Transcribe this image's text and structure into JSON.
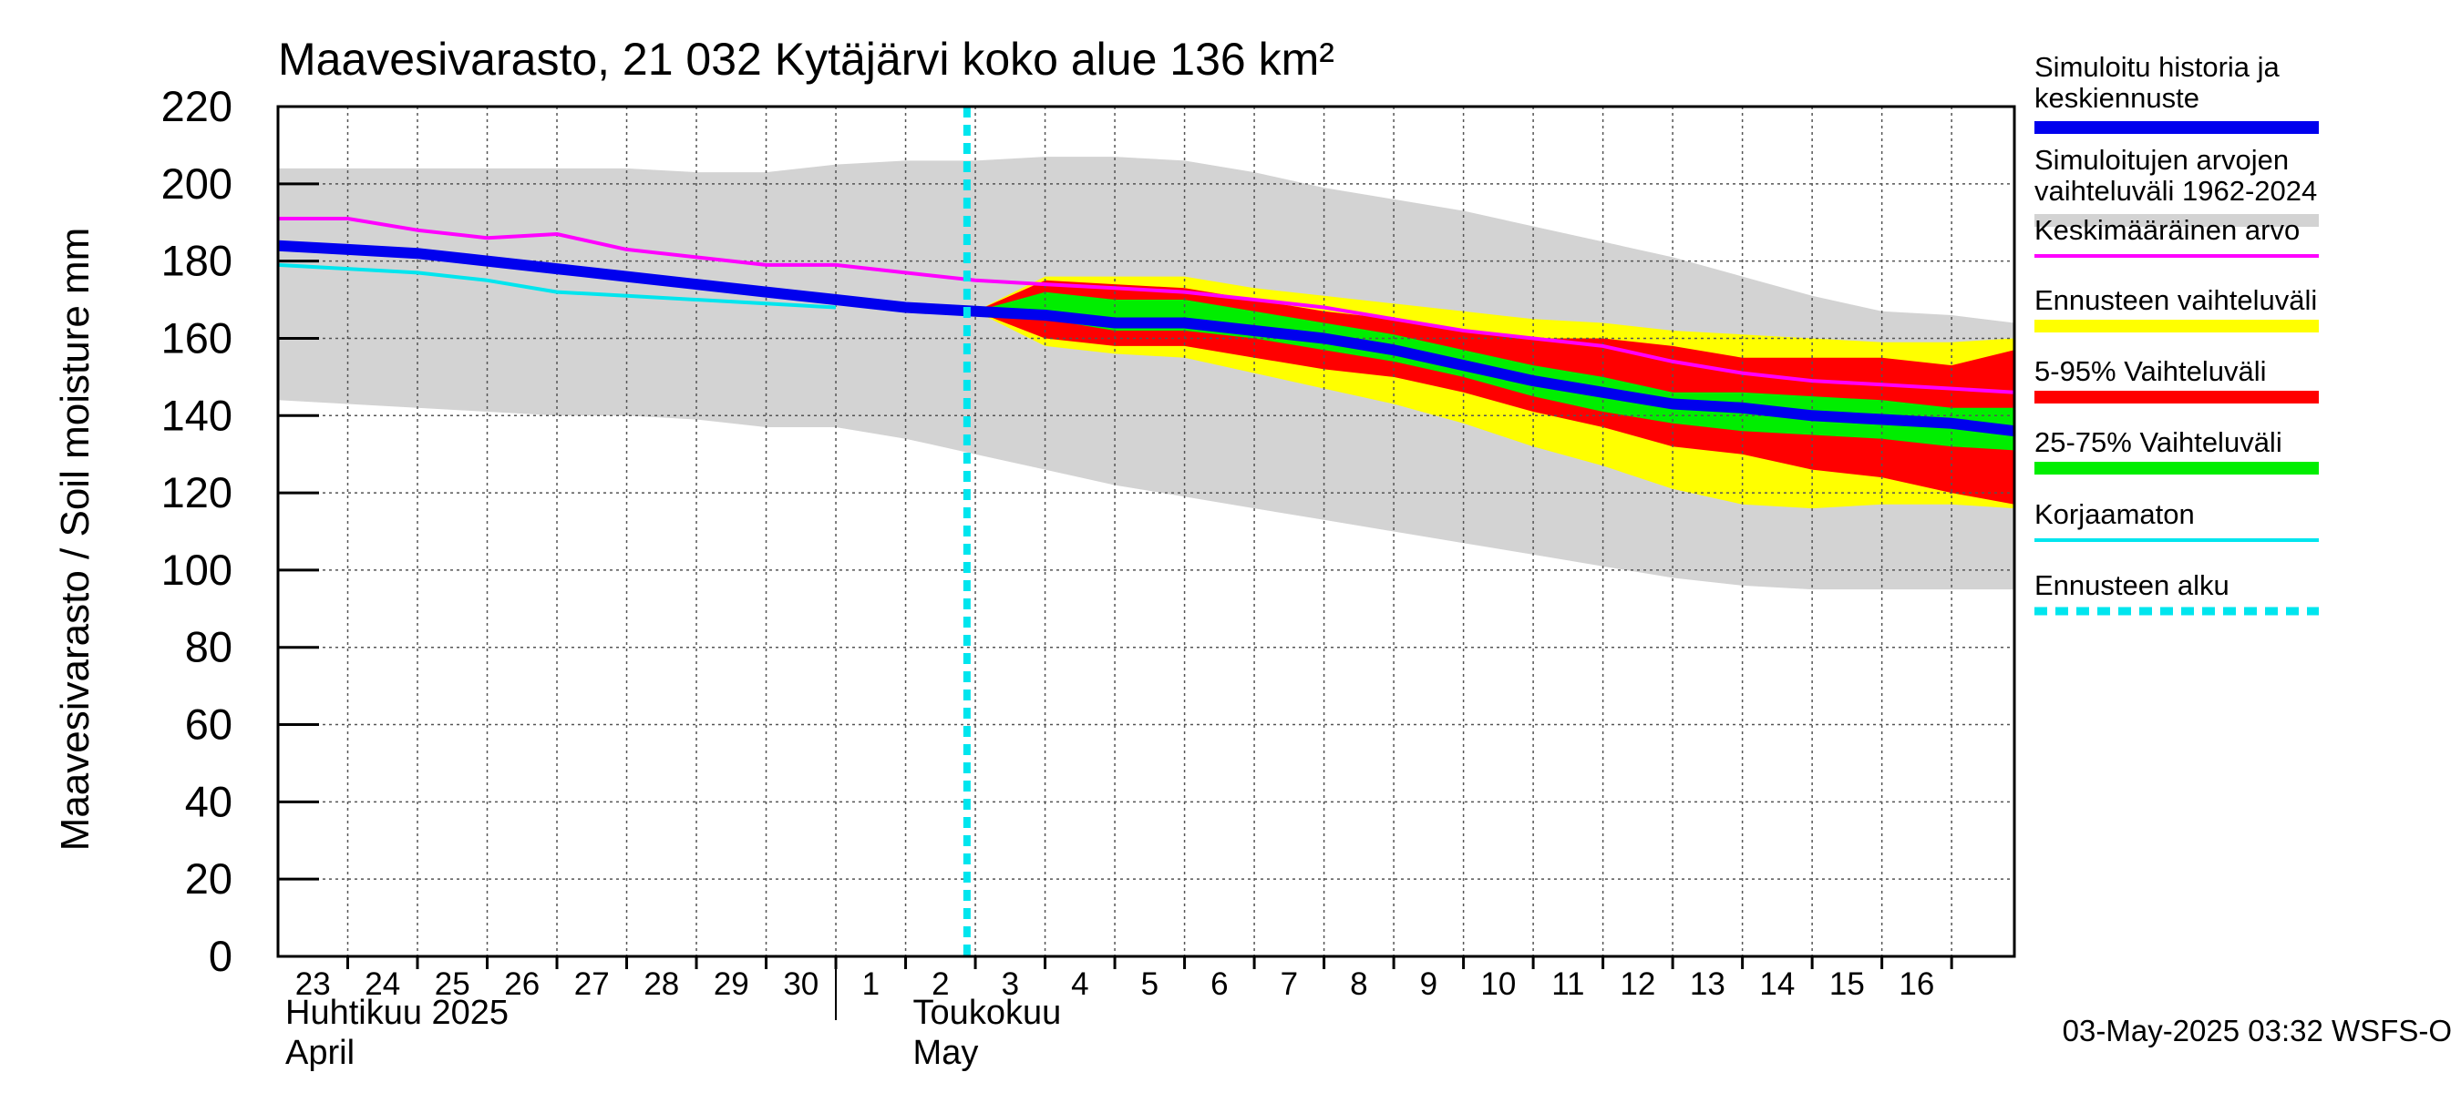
{
  "chart_data": {
    "type": "area",
    "title": "Maavesivarasto, 21 032 Kytäjärvi koko alue 136 km²",
    "ylabel": "Maavesivarasto / Soil moisture   mm",
    "ylim": [
      0,
      220
    ],
    "yticks": [
      0,
      20,
      40,
      60,
      80,
      100,
      120,
      140,
      160,
      180,
      200,
      220
    ],
    "x_start_day": 23,
    "x_days": 24.9,
    "day_labels": [
      "23",
      "24",
      "25",
      "26",
      "27",
      "28",
      "29",
      "30",
      "1",
      "2",
      "3",
      "4",
      "5",
      "6",
      "7",
      "8",
      "9",
      "10",
      "11",
      "12",
      "13",
      "14",
      "15",
      "16"
    ],
    "month_labels": [
      {
        "line1": "Huhtikuu  2025",
        "line2": "April",
        "day_index": 0
      },
      {
        "line1": "Toukokuu",
        "line2": "May",
        "day_index": 9
      }
    ],
    "month_separator_day_index": 8,
    "forecast_start_day_index": 10,
    "footer": "03-May-2025 03:32 WSFS-O",
    "colors": {
      "hist_range": "#d3d3d3",
      "forecast_range": "#ffff00",
      "p5_95": "#ff0000",
      "p25_75": "#00ee00",
      "mean": "#ff00ff",
      "uncorrected": "#00e5ee",
      "simulated": "#0000ee",
      "forecast_start": "#00e5ee",
      "grid": "#555555"
    },
    "series": {
      "hist_range": {
        "x": [
          0,
          1,
          2,
          3,
          4,
          5,
          6,
          7,
          8,
          9,
          10,
          11,
          12,
          13,
          14,
          15,
          16,
          17,
          18,
          19,
          20,
          21,
          22,
          23,
          24,
          24.9
        ],
        "upper": [
          204,
          204,
          204,
          204,
          204,
          204,
          203,
          203,
          205,
          206,
          206,
          207,
          207,
          206,
          203,
          199,
          196,
          193,
          189,
          185,
          181,
          176,
          171,
          167,
          166,
          164
        ],
        "lower": [
          144,
          143,
          142,
          141,
          140,
          140,
          139,
          137,
          137,
          134,
          130,
          126,
          122,
          119,
          116,
          113,
          110,
          107,
          104,
          101,
          98,
          96,
          95,
          95,
          95,
          95
        ]
      },
      "forecast_range": {
        "x": [
          10,
          11,
          12,
          13,
          14,
          15,
          16,
          17,
          18,
          19,
          20,
          21,
          22,
          23,
          24,
          24.9
        ],
        "upper": [
          167,
          176,
          176,
          176,
          173,
          171,
          169,
          167,
          165,
          164,
          162,
          161,
          160,
          159,
          159,
          160
        ],
        "lower": [
          167,
          158,
          156,
          155,
          151,
          147,
          143,
          138,
          132,
          127,
          121,
          117,
          116,
          117,
          117,
          116
        ]
      },
      "p5_95": {
        "x": [
          10,
          11,
          12,
          13,
          14,
          15,
          16,
          17,
          18,
          19,
          20,
          21,
          22,
          23,
          24,
          24.9
        ],
        "upper": [
          167,
          175,
          174,
          173,
          170,
          167,
          165,
          162,
          160,
          160,
          158,
          155,
          155,
          155,
          153,
          157
        ],
        "lower": [
          167,
          160,
          158,
          158,
          155,
          152,
          150,
          146,
          141,
          137,
          132,
          130,
          126,
          124,
          120,
          117
        ]
      },
      "p25_75": {
        "x": [
          10,
          11,
          12,
          13,
          14,
          15,
          16,
          17,
          18,
          19,
          20,
          21,
          22,
          23,
          24,
          24.9
        ],
        "upper": [
          167,
          172,
          170,
          170,
          167,
          164,
          161,
          157,
          153,
          150,
          146,
          146,
          145,
          144,
          142,
          142
        ],
        "lower": [
          167,
          165,
          162,
          162,
          160,
          157,
          154,
          150,
          145,
          141,
          138,
          136,
          135,
          134,
          132,
          131
        ]
      },
      "mean": {
        "x": [
          0,
          1,
          2,
          3,
          4,
          5,
          6,
          7,
          8,
          9,
          10,
          11,
          12,
          13,
          14,
          15,
          16,
          17,
          18,
          19,
          20,
          21,
          22,
          23,
          24,
          24.9
        ],
        "values": [
          191,
          191,
          188,
          186,
          187,
          183,
          181,
          179,
          179,
          177,
          175,
          174,
          173,
          172,
          170,
          168,
          165,
          162,
          160,
          158,
          154,
          151,
          149,
          148,
          147,
          146
        ]
      },
      "uncorrected": {
        "x": [
          0,
          1,
          2,
          3,
          4,
          5,
          6,
          7,
          8
        ],
        "values": [
          179,
          178,
          177,
          175,
          172,
          171,
          170,
          169,
          168
        ]
      },
      "simulated": {
        "x": [
          0,
          1,
          2,
          3,
          4,
          5,
          6,
          7,
          8,
          9,
          10,
          11,
          12,
          13,
          14,
          15,
          16,
          17,
          18,
          19,
          20,
          21,
          22,
          23,
          24,
          24.9
        ],
        "values": [
          184,
          183,
          182,
          180,
          178,
          176,
          174,
          172,
          170,
          168,
          167,
          166,
          164,
          164,
          162,
          160,
          157,
          153,
          149,
          146,
          143,
          142,
          140,
          139,
          138,
          136
        ]
      }
    },
    "legend": [
      {
        "line1": "Simuloitu historia ja",
        "line2": "keskiennuste",
        "color_key": "simulated",
        "style": "thick"
      },
      {
        "line1": "Simuloitujen arvojen",
        "line2": "vaihteluväli 1962-2024",
        "color_key": "hist_range",
        "style": "thick"
      },
      {
        "line1": "Keskimääräinen arvo",
        "line2": "",
        "color_key": "mean",
        "style": "thin"
      },
      {
        "line1": "Ennusteen vaihteluväli",
        "line2": "",
        "color_key": "forecast_range",
        "style": "thick"
      },
      {
        "line1": "5-95% Vaihteluväli",
        "line2": "",
        "color_key": "p5_95",
        "style": "thick"
      },
      {
        "line1": "25-75% Vaihteluväli",
        "line2": "",
        "color_key": "p25_75",
        "style": "thick"
      },
      {
        "line1": "Korjaamaton",
        "line2": "",
        "color_key": "uncorrected",
        "style": "thin"
      },
      {
        "line1": "Ennusteen alku",
        "line2": "",
        "color_key": "forecast_start",
        "style": "dashed"
      }
    ]
  }
}
